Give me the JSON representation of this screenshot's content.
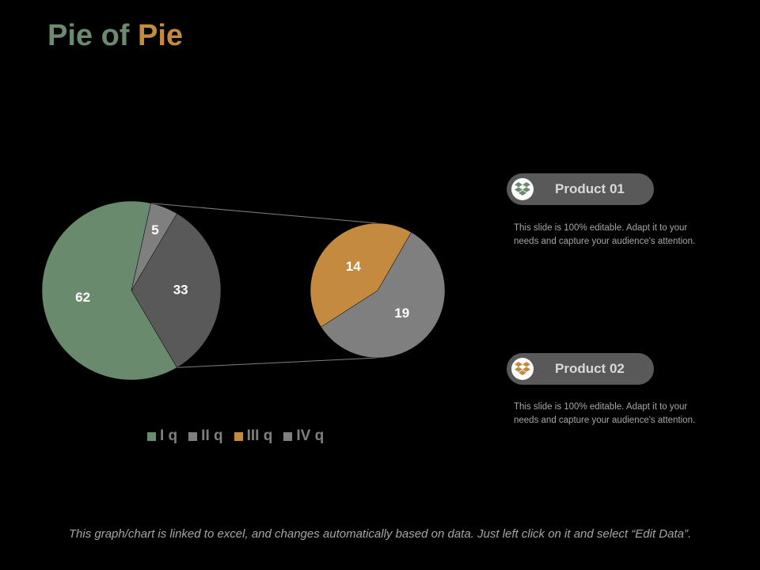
{
  "title": {
    "part1": "Pie of",
    "part2": "Pie",
    "color1": "#6b8a70",
    "color2": "#c48a3f"
  },
  "chart_data": {
    "type": "pie",
    "subtype": "pie-of-pie",
    "categories": [
      "I q",
      "II q",
      "III q",
      "IV q"
    ],
    "main_pie": [
      {
        "label": "62",
        "value": 62,
        "color": "#6a8a6e"
      },
      {
        "label": "5",
        "value": 5,
        "color": "#7f7f7f"
      },
      {
        "label": "33",
        "value": 33,
        "color": "#595959"
      }
    ],
    "secondary_pie": [
      {
        "label": "19",
        "value": 19,
        "color": "#7f7f7f"
      },
      {
        "label": "14",
        "value": 14,
        "color": "#c48a3f"
      }
    ],
    "legend": [
      {
        "label": "I q",
        "color": "#6a8a6e"
      },
      {
        "label": "II q",
        "color": "#7f7f7f"
      },
      {
        "label": "III q",
        "color": "#c48a3f"
      },
      {
        "label": "IV q",
        "color": "#7f7f7f"
      }
    ],
    "legend_position": "bottom"
  },
  "products": [
    {
      "label": "Product 01",
      "icon": "dropbox-icon",
      "icon_color": "#6a8a6e",
      "description": "This slide is 100% editable. Adapt it to your needs and capture your audience's attention."
    },
    {
      "label": "Product 02",
      "icon": "dropbox-icon",
      "icon_color": "#c48a3f",
      "description": "This slide is 100% editable. Adapt it to your needs and capture your audience's attention."
    }
  ],
  "footer": "This graph/chart is linked to excel, and changes automatically based on data. Just left click on it and select “Edit Data”."
}
